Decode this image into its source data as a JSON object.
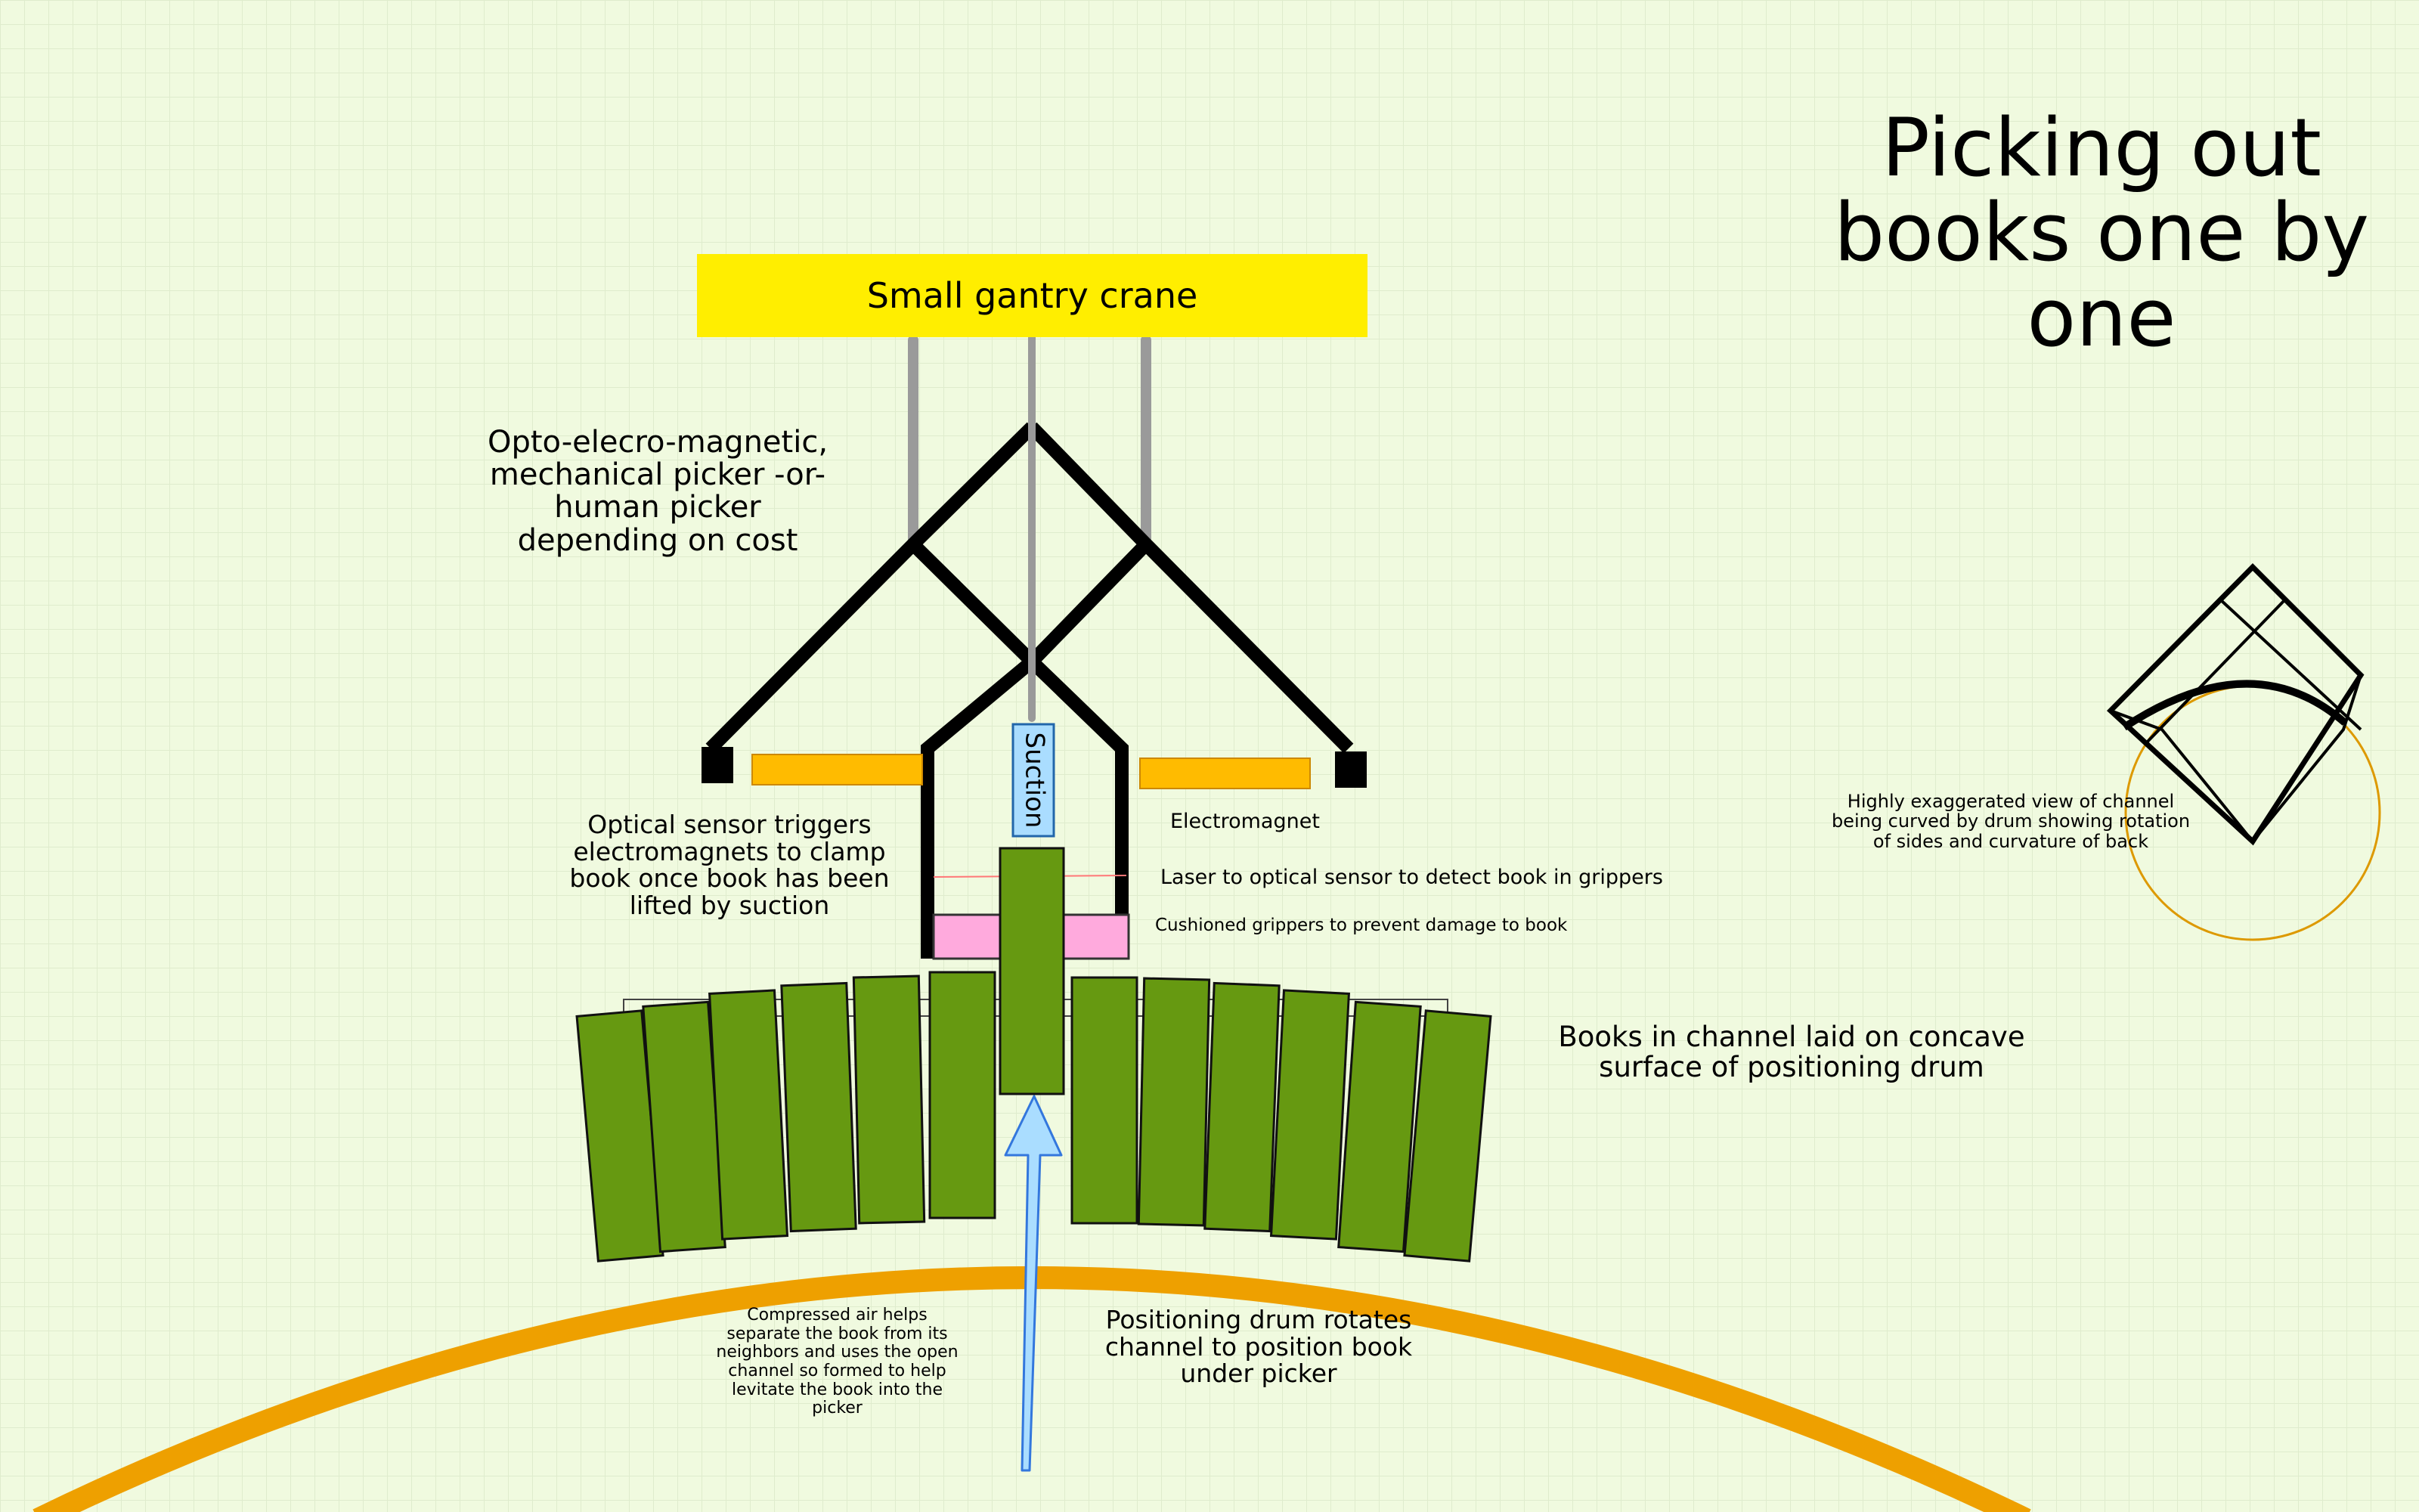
{
  "title": [
    "Picking out",
    "books one by",
    "one"
  ],
  "crane": {
    "label": "Small gantry crane",
    "color": "#ffee00"
  },
  "picker_label": [
    "Opto-elecro-magnetic,",
    "mechanical picker -or-",
    "human picker",
    "depending on cost"
  ],
  "suction_label": "Suction",
  "optical_label": [
    "Optical sensor triggers",
    "electromagnets to clamp",
    "book once book has been",
    "lifted by suction"
  ],
  "electromagnet_label": "Electromagnet",
  "laser_label": "Laser to optical sensor to detect book in grippers",
  "grippers_label": "Cushioned grippers to prevent damage to book",
  "books_label": [
    "Books in channel laid on concave",
    "surface of positioning drum"
  ],
  "compressed_air_label": [
    "Compressed air helps",
    "separate the book from its",
    "neighbors and uses the open",
    "channel so formed to help",
    "levitate the book into the",
    "picker"
  ],
  "drum_label": [
    "Positioning drum rotates",
    "channel to position book",
    "under picker"
  ],
  "inset_label": [
    "Highly exaggerated  view of channel",
    "being curved by drum showing rotation",
    "of sides and curvature of back"
  ],
  "colors": {
    "book": "#669911",
    "drum": "#eea000",
    "magnet": "#ffbb00",
    "gripper": "#ffaadd",
    "suction": "#aaddff",
    "arrow": "#aaddff",
    "rod": "#9a9a9a",
    "laser": "#ff7777"
  }
}
